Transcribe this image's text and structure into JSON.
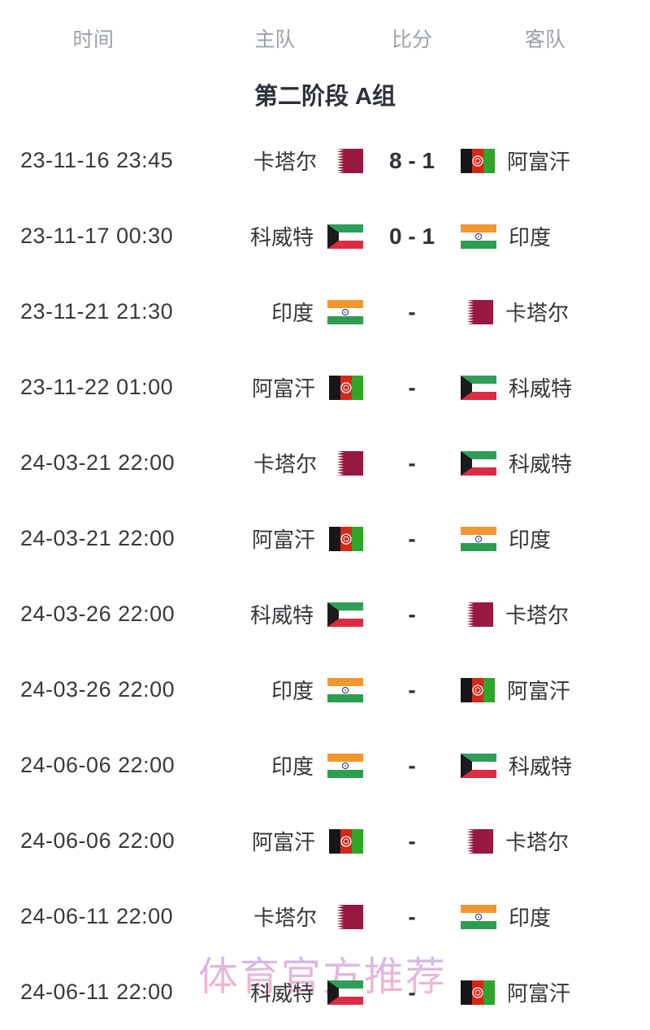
{
  "header": {
    "time": "时间",
    "home": "主队",
    "score": "比分",
    "away": "客队"
  },
  "section_title": "第二阶段 A组",
  "watermark": "体育官方推荐",
  "colors": {
    "text_dark": "#33363a",
    "text_muted": "#9ba1a8",
    "watermark_top": "#c2b1e8",
    "watermark_bottom": "#f6a7c7"
  },
  "flags": {
    "qatar": {
      "maroon": "#97193f",
      "white": "#ffffff"
    },
    "kuwait": {
      "green": "#2f9e58",
      "white": "#ffffff",
      "red": "#dd2b44",
      "black": "#1b1b1f"
    },
    "india": {
      "saffron": "#f2962f",
      "white": "#ffffff",
      "green": "#2d9e50",
      "navy": "#2b3a8c"
    },
    "afghanistan": {
      "black": "#16161a",
      "red": "#d62718",
      "green": "#2fa52a",
      "white": "#ffffff"
    }
  },
  "matches": [
    {
      "date": "23-11-16 23:45",
      "home": {
        "name": "卡塔尔",
        "flag": "qatar"
      },
      "score": "8 - 1",
      "away": {
        "name": "阿富汗",
        "flag": "afghanistan"
      }
    },
    {
      "date": "23-11-17 00:30",
      "home": {
        "name": "科威特",
        "flag": "kuwait"
      },
      "score": "0 - 1",
      "away": {
        "name": "印度",
        "flag": "india"
      }
    },
    {
      "date": "23-11-21 21:30",
      "home": {
        "name": "印度",
        "flag": "india"
      },
      "score": "-",
      "away": {
        "name": "卡塔尔",
        "flag": "qatar"
      }
    },
    {
      "date": "23-11-22 01:00",
      "home": {
        "name": "阿富汗",
        "flag": "afghanistan"
      },
      "score": "-",
      "away": {
        "name": "科威特",
        "flag": "kuwait"
      }
    },
    {
      "date": "24-03-21 22:00",
      "home": {
        "name": "卡塔尔",
        "flag": "qatar"
      },
      "score": "-",
      "away": {
        "name": "科威特",
        "flag": "kuwait"
      }
    },
    {
      "date": "24-03-21 22:00",
      "home": {
        "name": "阿富汗",
        "flag": "afghanistan"
      },
      "score": "-",
      "away": {
        "name": "印度",
        "flag": "india"
      }
    },
    {
      "date": "24-03-26 22:00",
      "home": {
        "name": "科威特",
        "flag": "kuwait"
      },
      "score": "-",
      "away": {
        "name": "卡塔尔",
        "flag": "qatar"
      }
    },
    {
      "date": "24-03-26 22:00",
      "home": {
        "name": "印度",
        "flag": "india"
      },
      "score": "-",
      "away": {
        "name": "阿富汗",
        "flag": "afghanistan"
      }
    },
    {
      "date": "24-06-06 22:00",
      "home": {
        "name": "印度",
        "flag": "india"
      },
      "score": "-",
      "away": {
        "name": "科威特",
        "flag": "kuwait"
      }
    },
    {
      "date": "24-06-06 22:00",
      "home": {
        "name": "阿富汗",
        "flag": "afghanistan"
      },
      "score": "-",
      "away": {
        "name": "卡塔尔",
        "flag": "qatar"
      }
    },
    {
      "date": "24-06-11 22:00",
      "home": {
        "name": "卡塔尔",
        "flag": "qatar"
      },
      "score": "-",
      "away": {
        "name": "印度",
        "flag": "india"
      }
    },
    {
      "date": "24-06-11 22:00",
      "home": {
        "name": "科威特",
        "flag": "kuwait"
      },
      "score": "-",
      "away": {
        "name": "阿富汗",
        "flag": "afghanistan"
      }
    }
  ]
}
